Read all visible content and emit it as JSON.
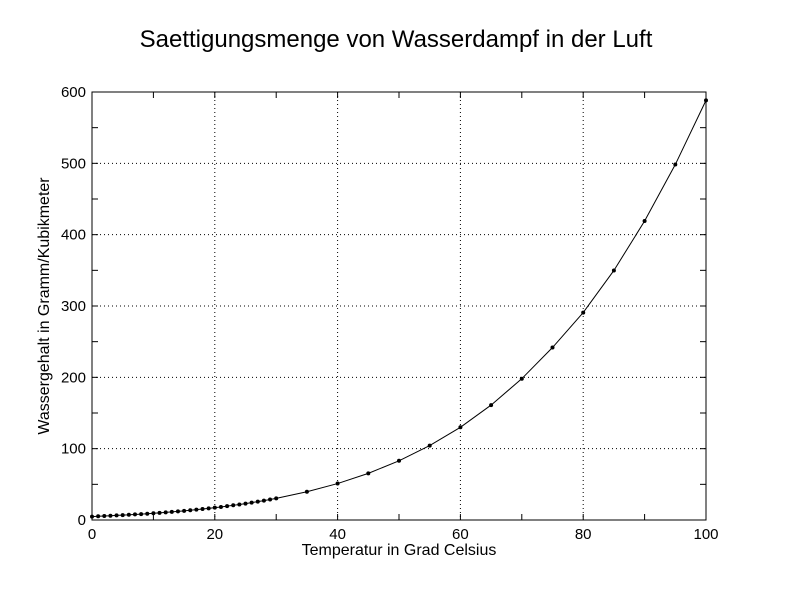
{
  "chart_data": {
    "type": "line",
    "title": "Saettigungsmenge von Wasserdampf in der Luft",
    "xlabel": "Temperatur in Grad Celsius",
    "ylabel": "Wassergehalt in Gramm/Kubikmeter",
    "xlim": [
      0,
      100
    ],
    "ylim": [
      0,
      600
    ],
    "xticks": [
      0,
      20,
      40,
      60,
      80,
      100
    ],
    "yticks": [
      0,
      100,
      200,
      300,
      400,
      500,
      600
    ],
    "grid": true,
    "line_color": "#000000",
    "x": [
      0,
      1,
      2,
      3,
      4,
      5,
      6,
      7,
      8,
      9,
      10,
      11,
      12,
      13,
      14,
      15,
      16,
      17,
      18,
      19,
      20,
      21,
      22,
      23,
      24,
      25,
      26,
      27,
      28,
      29,
      30,
      35,
      40,
      45,
      50,
      55,
      60,
      65,
      70,
      75,
      80,
      85,
      90,
      95,
      100
    ],
    "y": [
      4.8,
      5.2,
      5.6,
      5.9,
      6.4,
      6.8,
      7.3,
      7.8,
      8.3,
      8.8,
      9.4,
      10.0,
      10.7,
      11.4,
      12.1,
      12.8,
      13.6,
      14.5,
      15.4,
      16.3,
      17.3,
      18.3,
      19.4,
      20.6,
      21.8,
      23.0,
      24.4,
      25.8,
      27.2,
      28.7,
      30.3,
      39.6,
      51.1,
      65.4,
      83.0,
      104.3,
      130.0,
      161.1,
      198.1,
      241.8,
      290.8,
      349.8,
      419.1,
      498.3,
      588.3
    ]
  }
}
